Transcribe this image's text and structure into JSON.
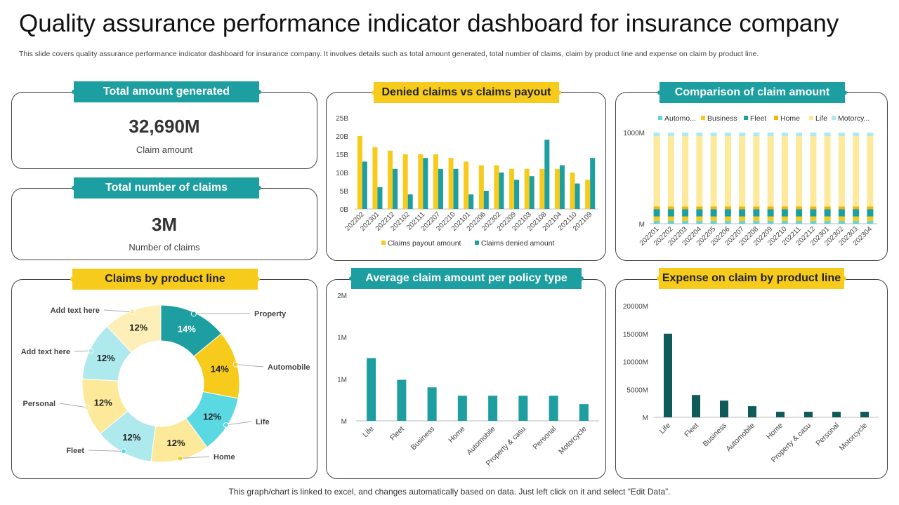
{
  "title": "Quality assurance performance indicator dashboard for insurance company",
  "subtitle": "This slide covers quality assurance performance indicator dashboard for insurance company. It involves details such as total amount generated, total number of claims, claim by product line and expense on claim by product line.",
  "footer": "This graph/chart is linked to excel,  and changes automatically based on data. Just left click on it and select “Edit Data”.",
  "colors": {
    "teal": "#1d9ea0",
    "yellow": "#f7cb1b",
    "dark_teal": "#0e5b59",
    "light_yellow": "#fde99a",
    "light_cyan": "#aee9ee",
    "cyan": "#5ad9e3"
  },
  "kpis": {
    "total_amount": {
      "header": "Total amount generated",
      "value": "32,690M",
      "label": "Claim amount"
    },
    "total_claims": {
      "header": "Total number of claims",
      "value": "3M",
      "label": "Number of claims"
    }
  },
  "headers": {
    "denied": "Denied claims vs claims payout",
    "comparison": "Comparison of claim amount",
    "product": "Claims by product line",
    "average": "Average claim amount per policy type",
    "expense": "Expense on claim by product line"
  },
  "chart_data": [
    {
      "id": "denied",
      "type": "bar",
      "categories": [
        "202202",
        "202301",
        "202212",
        "202102",
        "202111",
        "202207",
        "202210",
        "202101",
        "202206",
        "202302",
        "202209",
        "202103",
        "202108",
        "202104",
        "202110",
        "202109"
      ],
      "series": [
        {
          "name": "Claims payout amount",
          "values": [
            20,
            17,
            16,
            15,
            15,
            15,
            14,
            13,
            12,
            12,
            11,
            11,
            11,
            11,
            10,
            8
          ]
        },
        {
          "name": "Claims denied amount",
          "values": [
            13,
            6,
            11,
            4,
            14,
            11,
            11,
            4,
            5,
            10,
            8,
            9,
            19,
            12,
            7,
            14
          ]
        }
      ],
      "ylim": [
        0,
        25
      ],
      "yticks": [
        "0B",
        "5B",
        "10B",
        "15B",
        "20B",
        "25B"
      ],
      "legend": "bottom"
    },
    {
      "id": "comparison",
      "type": "bar",
      "stacked": true,
      "categories": [
        "202201",
        "202202",
        "202203",
        "202204",
        "202205",
        "202206",
        "202207",
        "202208",
        "202209",
        "202210",
        "202211",
        "202212",
        "202301",
        "202302",
        "202303",
        "202304"
      ],
      "series": [
        {
          "name": "Automo...",
          "values": [
            0.03,
            0.03,
            0.03,
            0.03,
            0.03,
            0.03,
            0.03,
            0.03,
            0.03,
            0.03,
            0.03,
            0.03,
            0.03,
            0.03,
            0.03,
            0.03
          ]
        },
        {
          "name": "Business",
          "values": [
            0.05,
            0.05,
            0.05,
            0.05,
            0.05,
            0.05,
            0.05,
            0.05,
            0.05,
            0.05,
            0.05,
            0.05,
            0.05,
            0.05,
            0.05,
            0.05
          ]
        },
        {
          "name": "Fleet",
          "values": [
            0.08,
            0.08,
            0.08,
            0.08,
            0.08,
            0.08,
            0.08,
            0.08,
            0.08,
            0.08,
            0.08,
            0.08,
            0.08,
            0.08,
            0.08,
            0.08
          ]
        },
        {
          "name": "Home",
          "values": [
            0.03,
            0.03,
            0.03,
            0.03,
            0.03,
            0.03,
            0.03,
            0.03,
            0.03,
            0.03,
            0.03,
            0.03,
            0.03,
            0.03,
            0.03,
            0.03
          ]
        },
        {
          "name": "Life",
          "values": [
            0.77,
            0.77,
            0.77,
            0.77,
            0.77,
            0.77,
            0.77,
            0.77,
            0.77,
            0.77,
            0.77,
            0.77,
            0.77,
            0.77,
            0.77,
            0.77
          ]
        },
        {
          "name": "Motorcy...",
          "values": [
            0.04,
            0.04,
            0.04,
            0.04,
            0.04,
            0.04,
            0.04,
            0.04,
            0.04,
            0.04,
            0.04,
            0.04,
            0.04,
            0.04,
            0.04,
            0.04
          ]
        }
      ],
      "ylim": [
        0,
        1
      ],
      "yticks": [
        "M",
        "1000M"
      ],
      "legend": "top"
    },
    {
      "id": "product",
      "type": "pie",
      "donut": true,
      "slices": [
        {
          "label": "Property",
          "value": 14,
          "text": "14%"
        },
        {
          "label": "Automobile",
          "value": 14,
          "text": "14%"
        },
        {
          "label": "Life",
          "value": 12,
          "text": "12%"
        },
        {
          "label": "Home",
          "value": 12,
          "text": "12%"
        },
        {
          "label": "Fleet",
          "value": 12,
          "text": "12%"
        },
        {
          "label": "Personal",
          "value": 12,
          "text": "12%"
        },
        {
          "label": "Add text here",
          "value": 12,
          "text": "12%"
        },
        {
          "label": "Add text here",
          "value": 12,
          "text": "12%"
        }
      ]
    },
    {
      "id": "average",
      "type": "bar",
      "categories": [
        "Life",
        "Fleet",
        "Business",
        "Home",
        "Automobile",
        "Property & casu",
        "Personal",
        "Motorcycle"
      ],
      "values": [
        1.5,
        0.98,
        0.8,
        0.6,
        0.6,
        0.6,
        0.6,
        0.4
      ],
      "ylim": [
        0,
        3
      ],
      "yticks": [
        "M",
        "1M",
        "1M",
        "2M"
      ]
    },
    {
      "id": "expense",
      "type": "bar",
      "categories": [
        "Life",
        "Fleet",
        "Business",
        "Automobile",
        "Home",
        "Property & casu",
        "Personal",
        "Motorcycle"
      ],
      "values": [
        15000,
        4000,
        3000,
        2000,
        1000,
        1000,
        1000,
        1000
      ],
      "ylim": [
        0,
        20000
      ],
      "yticks": [
        "M",
        "5000M",
        "10000M",
        "15000M",
        "20000M"
      ]
    }
  ]
}
